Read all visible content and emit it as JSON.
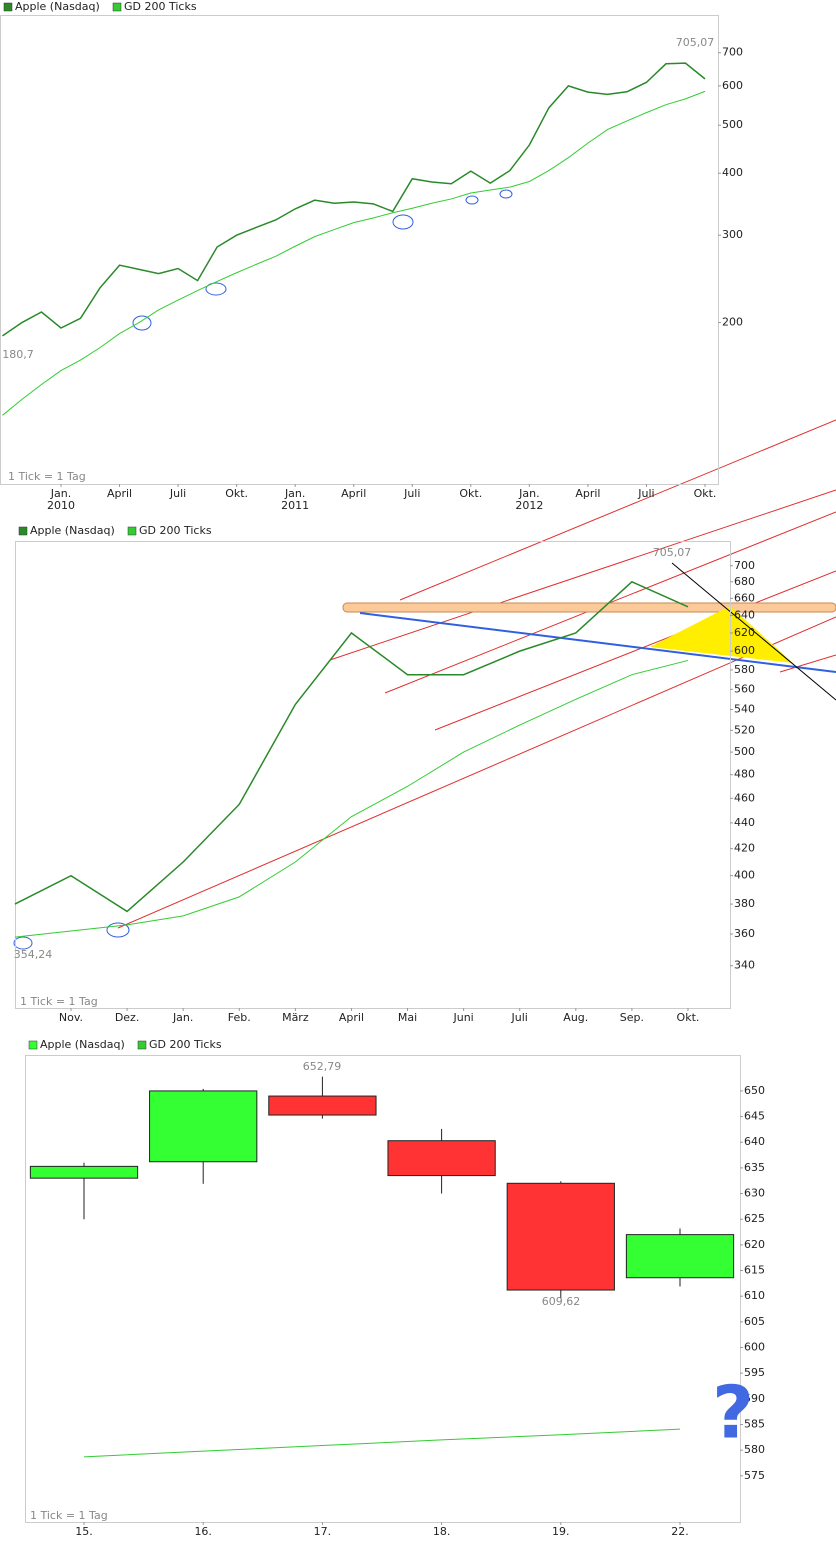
{
  "chart_data": [
    {
      "type": "line",
      "log_scale": true,
      "categories": [
        null,
        null,
        null,
        "Jan.",
        null,
        null,
        "April",
        null,
        null,
        "Juli",
        null,
        null,
        "Okt.",
        null,
        null,
        "Jan.",
        null,
        null,
        "April",
        null,
        null,
        "Juli",
        null,
        null,
        "Okt.",
        null,
        null,
        "Jan.",
        null,
        null,
        "April",
        null,
        null,
        "Juli",
        null,
        null,
        "Okt."
      ],
      "year_labels": [
        null,
        null,
        null,
        "2010",
        null,
        null,
        null,
        null,
        null,
        null,
        null,
        null,
        null,
        null,
        null,
        "2011",
        null,
        null,
        null,
        null,
        null,
        null,
        null,
        null,
        null,
        null,
        null,
        "2012",
        null,
        null,
        null,
        null,
        null,
        null,
        null,
        null,
        null
      ],
      "series": [
        {
          "name": "Apple (Nasdaq)",
          "color": "#2a8a2a",
          "values": [
            188,
            200,
            210,
            195,
            204,
            235,
            261,
            256,
            251,
            257,
            243,
            284,
            300,
            311,
            322,
            339,
            353,
            348,
            350,
            347,
            335,
            390,
            384,
            381,
            404,
            382,
            405,
            456,
            542,
            600,
            583,
            577,
            584,
            610,
            665,
            667,
            620
          ]
        },
        {
          "name": "GD 200 Ticks",
          "color": "#33cc33",
          "values": [
            130,
            140,
            150,
            160,
            168,
            178,
            190,
            200,
            212,
            222,
            232,
            242,
            252,
            262,
            272,
            285,
            298,
            308,
            318,
            325,
            333,
            340,
            348,
            355,
            365,
            370,
            375,
            385,
            405,
            430,
            460,
            490,
            510,
            530,
            550,
            565,
            585
          ]
        }
      ],
      "ylim": [
        94.5,
        834
      ],
      "yticks": [
        200,
        300,
        400,
        500,
        600,
        700
      ],
      "annotations": [
        "705,07",
        "180,7",
        "1 Tick = 1 Tag"
      ]
    },
    {
      "type": "line",
      "log_scale": true,
      "categories": [
        null,
        "Nov.",
        "Dez.",
        "Jan.",
        "Feb.",
        "März",
        "April",
        "Mai",
        "Juni",
        "Juli",
        "Aug.",
        "Sep.",
        "Okt."
      ],
      "series": [
        {
          "name": "Apple (Nasdaq)",
          "color": "#2a8a2a",
          "values": [
            380,
            400,
            375,
            410,
            455,
            545,
            620,
            575,
            575,
            600,
            620,
            680,
            650
          ]
        },
        {
          "name": "GD 200 Ticks",
          "color": "#33cc33",
          "values": [
            358,
            362,
            366,
            372,
            385,
            410,
            445,
            470,
            500,
            525,
            550,
            575,
            590
          ]
        }
      ],
      "ylim": [
        315,
        732
      ],
      "yticks": [
        340,
        360,
        380,
        400,
        420,
        440,
        460,
        480,
        500,
        520,
        540,
        560,
        580,
        600,
        620,
        640,
        660,
        680,
        700
      ],
      "annotations": [
        "705,07",
        "354,24",
        "1 Tick = 1 Tag"
      ]
    },
    {
      "type": "candlestick",
      "log_scale": false,
      "categories": [
        "15.",
        "16.",
        "17.",
        "18.",
        "19.",
        "22."
      ],
      "series": [
        {
          "name": "Apple (Nasdaq)",
          "up_color": "#33ff33",
          "down_color": "#ff3333",
          "open": [
            633.0,
            636.2,
            649.0,
            640.3,
            632.0,
            613.6
          ],
          "high": [
            636.0,
            650.4,
            652.79,
            642.6,
            632.4,
            623.2
          ],
          "low": [
            625.0,
            631.9,
            644.6,
            630.0,
            609.62,
            611.9
          ],
          "close": [
            635.3,
            650.0,
            645.3,
            633.5,
            611.2,
            622.0
          ]
        },
        {
          "name": "GD 200 Ticks",
          "color": "#33cc33",
          "values": [
            578.7,
            579.8,
            580.9,
            582.0,
            583.0,
            584.1
          ]
        }
      ],
      "ylim": [
        566,
        657
      ],
      "yticks": [
        575,
        580,
        585,
        590,
        595,
        600,
        605,
        610,
        615,
        620,
        625,
        630,
        635,
        640,
        645,
        650
      ],
      "annotations": [
        "652,79",
        "609,62",
        "1 Tick = 1 Tag",
        "?"
      ]
    }
  ]
}
